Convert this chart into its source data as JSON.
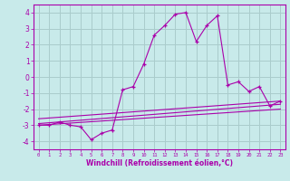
{
  "bg_color": "#c8eaea",
  "grid_color": "#aacccc",
  "line_color": "#aa00aa",
  "marker": "+",
  "xlabel": "Windchill (Refroidissement éolien,°C)",
  "xlim": [
    -0.5,
    23.5
  ],
  "ylim": [
    -4.5,
    4.5
  ],
  "yticks": [
    -4,
    -3,
    -2,
    -1,
    0,
    1,
    2,
    3,
    4
  ],
  "xticks": [
    0,
    1,
    2,
    3,
    4,
    5,
    6,
    7,
    8,
    9,
    10,
    11,
    12,
    13,
    14,
    15,
    16,
    17,
    18,
    19,
    20,
    21,
    22,
    23
  ],
  "series": [
    [
      0,
      -3.0,
      1,
      -3.0,
      2,
      -2.8,
      3,
      -3.0,
      4,
      -3.1,
      5,
      -3.9,
      6,
      -3.5,
      7,
      -3.3,
      8,
      -0.8,
      9,
      -0.6,
      10,
      0.8,
      11,
      2.6,
      12,
      3.2,
      13,
      3.9,
      14,
      4.0,
      15,
      2.2,
      16,
      3.2,
      17,
      3.8,
      18,
      -0.5,
      19,
      -0.3,
      20,
      -0.9,
      21,
      -0.6,
      22,
      -1.8,
      23,
      -1.5
    ],
    [
      0,
      -3.0,
      23,
      -2.0
    ],
    [
      0,
      -2.9,
      23,
      -1.7
    ],
    [
      0,
      -2.6,
      23,
      -1.5
    ]
  ]
}
